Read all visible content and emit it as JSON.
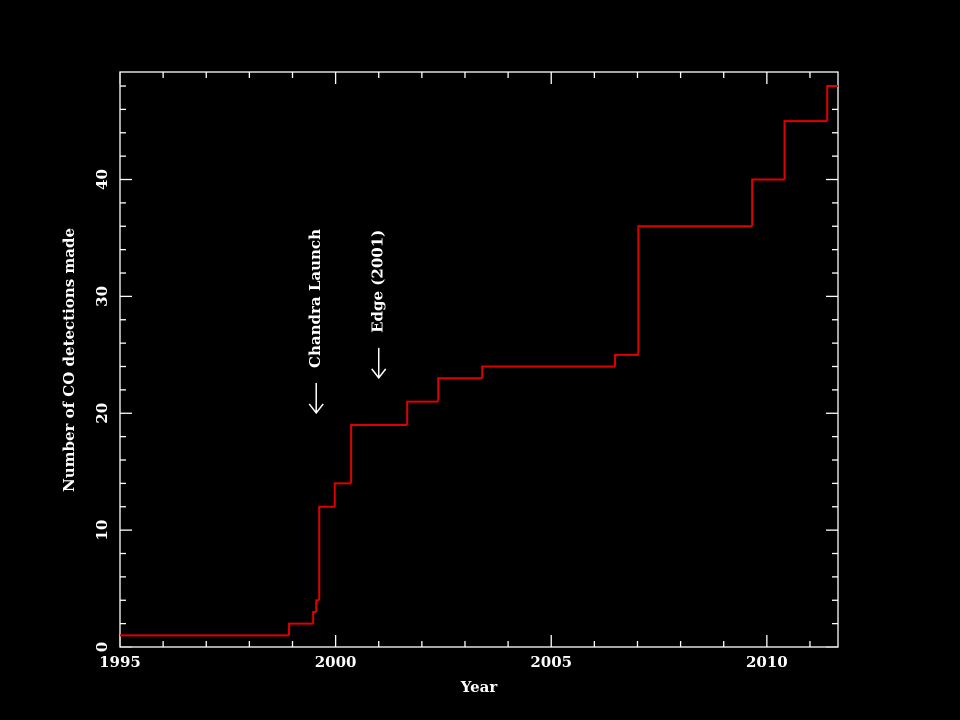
{
  "chart_data": {
    "type": "step",
    "xlabel": "Year",
    "ylabel": "Number of CO detections made",
    "x": [
      1995,
      1998.92,
      1999.48,
      1999.55,
      1999.62,
      1999.98,
      2000.36,
      2001.66,
      2002.38,
      2003.4,
      2006.48,
      2007.02,
      2009.66,
      2010.41,
      2011.4,
      2011.65
    ],
    "values": [
      1,
      2,
      3,
      4,
      12,
      14,
      19,
      21,
      23,
      24,
      25,
      36,
      40,
      45,
      48,
      48
    ],
    "color": "#e00000",
    "xlim": [
      1995,
      2011.65
    ],
    "ylim": [
      0,
      49.2
    ],
    "xticks": [
      1995,
      2000,
      2005,
      2010
    ],
    "yticks": [
      0,
      10,
      20,
      30,
      40
    ],
    "xminorticks": [
      1996,
      1997,
      1998,
      1999,
      2001,
      2002,
      2003,
      2004,
      2006,
      2007,
      2008,
      2009,
      2011
    ],
    "yminorticks": [
      2,
      4,
      6,
      8,
      12,
      14,
      16,
      18,
      22,
      24,
      26,
      28,
      32,
      34,
      36,
      38,
      42,
      44,
      46,
      48
    ],
    "annotations": [
      {
        "text": "Chandra Launch",
        "x": 1999.55,
        "y": 19
      },
      {
        "text": "Edge (2001)",
        "x": 2001.0,
        "y": 22
      }
    ]
  }
}
